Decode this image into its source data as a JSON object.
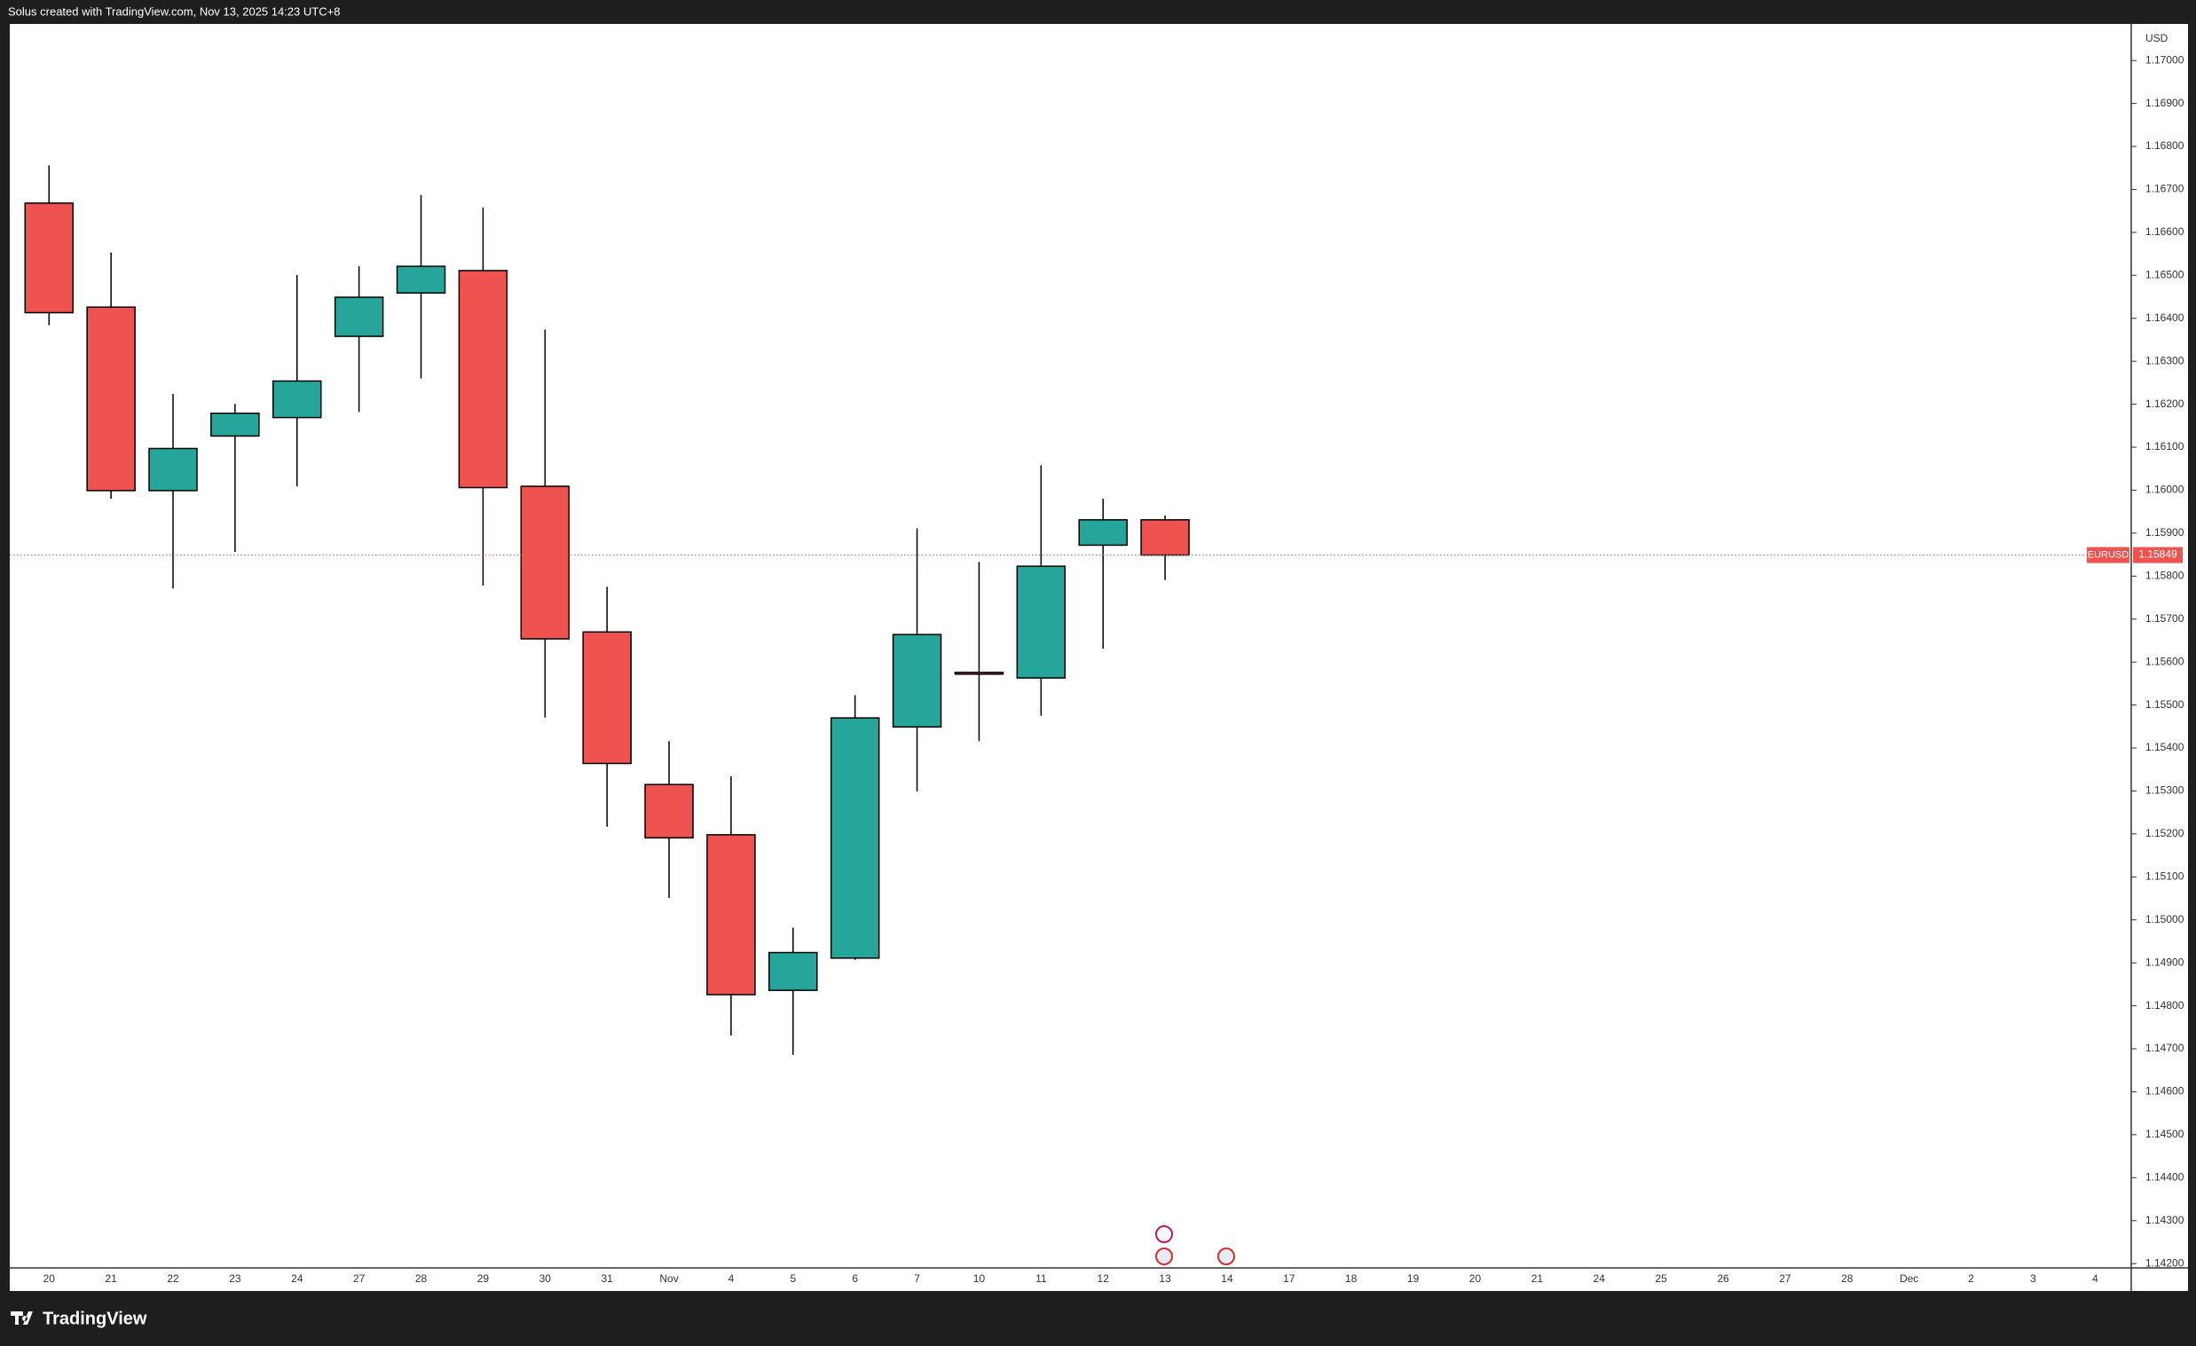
{
  "header": {
    "title": "Solus created with TradingView.com, Nov 13, 2025 14:23 UTC+8"
  },
  "footer": {
    "logo": "TradingView"
  },
  "chart_data": {
    "type": "candlestick",
    "y_axis_label": "USD",
    "categories": [
      "20",
      "21",
      "22",
      "23",
      "24",
      "27",
      "28",
      "29",
      "30",
      "31",
      "Nov",
      "4",
      "5",
      "6",
      "7",
      "10",
      "11",
      "12",
      "13",
      "14",
      "17",
      "18",
      "19",
      "20",
      "21",
      "24",
      "25",
      "26",
      "27",
      "28",
      "Dec",
      "2",
      "3",
      "4"
    ],
    "open": [
      1.16668,
      1.16426,
      1.15999,
      1.16126,
      1.16169,
      1.16358,
      1.16459,
      1.16511,
      1.16009,
      1.1567,
      1.15315,
      1.15198,
      1.14836,
      1.14911,
      1.15449,
      1.15576,
      1.15563,
      1.15872,
      1.15931,
      null,
      null,
      null,
      null,
      null,
      null,
      null,
      null,
      null,
      null,
      null,
      null,
      null,
      null,
      null
    ],
    "high": [
      1.16756,
      1.16553,
      1.16224,
      1.16201,
      1.16501,
      1.16521,
      1.16687,
      1.16658,
      1.16374,
      1.15775,
      1.15416,
      1.15334,
      1.14982,
      1.15523,
      1.15911,
      1.15833,
      1.16058,
      1.1598,
      1.15941,
      null,
      null,
      null,
      null,
      null,
      null,
      null,
      null,
      null,
      null,
      null,
      null,
      null,
      null,
      null
    ],
    "low": [
      1.16384,
      1.1598,
      1.15771,
      1.15856,
      1.16009,
      1.16182,
      1.1626,
      1.15778,
      1.15471,
      1.15217,
      1.15051,
      1.14731,
      1.14686,
      1.14907,
      1.15299,
      1.15416,
      1.15475,
      1.15631,
      1.15791,
      null,
      null,
      null,
      null,
      null,
      null,
      null,
      null,
      null,
      null,
      null,
      null,
      null,
      null,
      null
    ],
    "close": [
      1.16413,
      1.15999,
      1.16097,
      1.16179,
      1.16254,
      1.16449,
      1.16521,
      1.16006,
      1.15654,
      1.15364,
      1.15191,
      1.14826,
      1.14924,
      1.1547,
      1.15664,
      1.15573,
      1.15823,
      1.15931,
      1.15849,
      null,
      null,
      null,
      null,
      null,
      null,
      null,
      null,
      null,
      null,
      null,
      null,
      null,
      null,
      null
    ],
    "up_color": "#26a69a",
    "down_color": "#ef5350",
    "last_price": {
      "symbol": "EURUSD",
      "value": 1.15849
    },
    "ylim": [
      1.1419,
      1.17085
    ],
    "yticks": [
      {
        "value": 1.142,
        "label": "1.14200"
      },
      {
        "value": 1.143,
        "label": "1.14300"
      },
      {
        "value": 1.144,
        "label": "1.14400"
      },
      {
        "value": 1.145,
        "label": "1.14500"
      },
      {
        "value": 1.146,
        "label": "1.14600"
      },
      {
        "value": 1.147,
        "label": "1.14700"
      },
      {
        "value": 1.148,
        "label": "1.14800"
      },
      {
        "value": 1.149,
        "label": "1.14900"
      },
      {
        "value": 1.15,
        "label": "1.15000"
      },
      {
        "value": 1.151,
        "label": "1.15100"
      },
      {
        "value": 1.152,
        "label": "1.15200"
      },
      {
        "value": 1.153,
        "label": "1.15300"
      },
      {
        "value": 1.154,
        "label": "1.15400"
      },
      {
        "value": 1.155,
        "label": "1.15500"
      },
      {
        "value": 1.156,
        "label": "1.15600"
      },
      {
        "value": 1.157,
        "label": "1.15700"
      },
      {
        "value": 1.158,
        "label": "1.15800"
      },
      {
        "value": 1.159,
        "label": "1.15900"
      },
      {
        "value": 1.16,
        "label": "1.16000"
      },
      {
        "value": 1.161,
        "label": "1.16100"
      },
      {
        "value": 1.162,
        "label": "1.16200"
      },
      {
        "value": 1.163,
        "label": "1.16300"
      },
      {
        "value": 1.164,
        "label": "1.16400"
      },
      {
        "value": 1.165,
        "label": "1.16500"
      },
      {
        "value": 1.166,
        "label": "1.16600"
      },
      {
        "value": 1.167,
        "label": "1.16700"
      },
      {
        "value": 1.168,
        "label": "1.16800"
      },
      {
        "value": 1.169,
        "label": "1.16900"
      },
      {
        "value": 1.17,
        "label": "1.17000"
      }
    ],
    "grid": false
  }
}
